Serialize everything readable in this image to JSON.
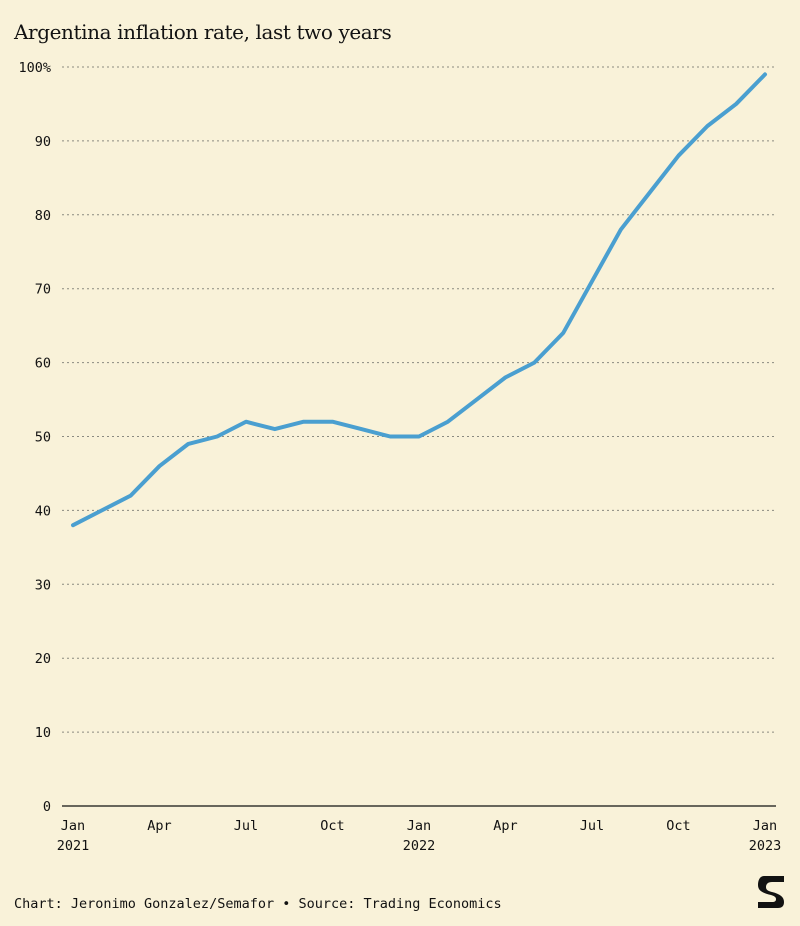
{
  "title": "Argentina inflation rate, last two years",
  "footer": "Chart: Jeronimo Gonzalez/Semafor • Source: Trading Economics",
  "logo_icon": "semafor-s-logo-icon",
  "colors": {
    "background": "#f9f2d9",
    "line": "#4a9fd0",
    "grid": "#8a8a80",
    "text": "#121212"
  },
  "chart_data": {
    "type": "line",
    "title": "Argentina inflation rate, last two years",
    "xlabel": "",
    "ylabel": "",
    "ylim": [
      0,
      100
    ],
    "y_ticks": [
      {
        "value": 100,
        "label": "100%"
      },
      {
        "value": 90,
        "label": "90"
      },
      {
        "value": 80,
        "label": "80"
      },
      {
        "value": 70,
        "label": "70"
      },
      {
        "value": 60,
        "label": "60"
      },
      {
        "value": 50,
        "label": "50"
      },
      {
        "value": 40,
        "label": "40"
      },
      {
        "value": 30,
        "label": "30"
      },
      {
        "value": 20,
        "label": "20"
      },
      {
        "value": 10,
        "label": "10"
      },
      {
        "value": 0,
        "label": "0"
      }
    ],
    "x_ticks": [
      {
        "x": "2021-01",
        "label": "Jan",
        "sublabel": "2021"
      },
      {
        "x": "2021-04",
        "label": "Apr",
        "sublabel": ""
      },
      {
        "x": "2021-07",
        "label": "Jul",
        "sublabel": ""
      },
      {
        "x": "2021-10",
        "label": "Oct",
        "sublabel": ""
      },
      {
        "x": "2022-01",
        "label": "Jan",
        "sublabel": "2022"
      },
      {
        "x": "2022-04",
        "label": "Apr",
        "sublabel": ""
      },
      {
        "x": "2022-07",
        "label": "Jul",
        "sublabel": ""
      },
      {
        "x": "2022-10",
        "label": "Oct",
        "sublabel": ""
      },
      {
        "x": "2023-01",
        "label": "Jan",
        "sublabel": "2023"
      }
    ],
    "grid": true,
    "series": [
      {
        "x": [
          "2021-01",
          "2021-02",
          "2021-03",
          "2021-04",
          "2021-05",
          "2021-06",
          "2021-07",
          "2021-08",
          "2021-09",
          "2021-10",
          "2021-11",
          "2021-12",
          "2022-01",
          "2022-02",
          "2022-03",
          "2022-04",
          "2022-05",
          "2022-06",
          "2022-07",
          "2022-08",
          "2022-09",
          "2022-10",
          "2022-11",
          "2022-12",
          "2023-01"
        ],
        "values": [
          38,
          40,
          42,
          46,
          49,
          50,
          52,
          51,
          52,
          52,
          51,
          50,
          50,
          52,
          55,
          58,
          60,
          64,
          71,
          78,
          83,
          88,
          92,
          95,
          99
        ]
      }
    ]
  }
}
